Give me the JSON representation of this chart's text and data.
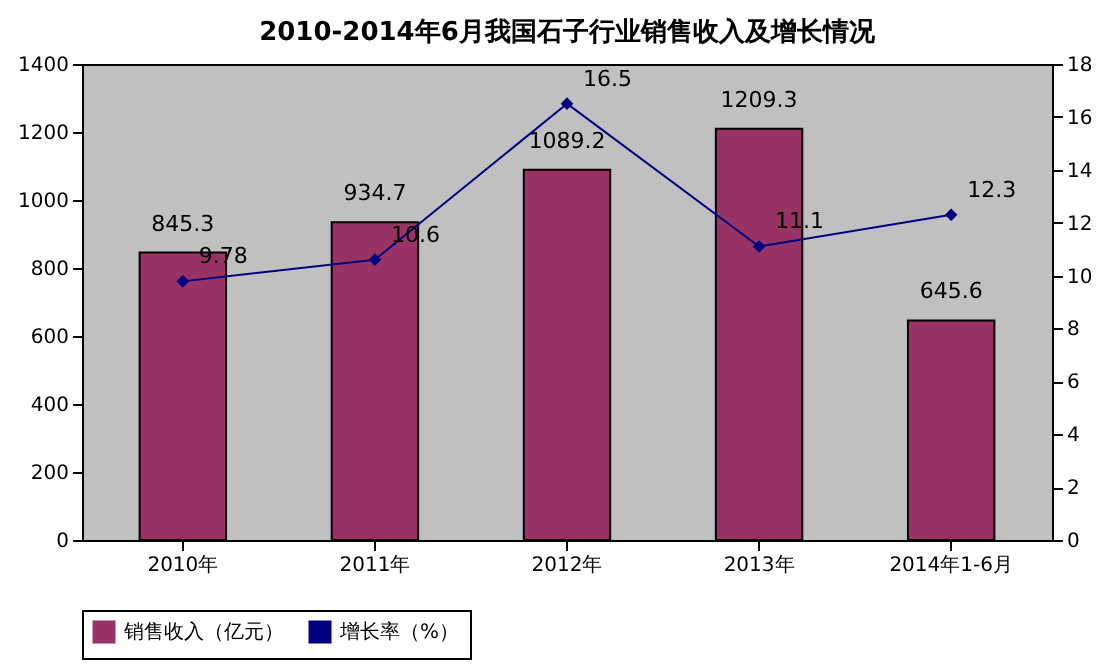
{
  "chart_data": {
    "type": "bar",
    "title": "2010-2014年6月我国石子行业销售收入及增长情况",
    "categories": [
      "2010年",
      "2011年",
      "2012年",
      "2013年",
      "2014年1-6月"
    ],
    "series": [
      {
        "name": "销售收入（亿元）",
        "color": "#993366",
        "values": [
          845.3,
          934.7,
          1089.2,
          1209.3,
          645.6
        ]
      },
      {
        "name": "增长率（%）",
        "type": "line",
        "axis": "y2",
        "color": "#000080",
        "marker": "diamond",
        "values": [
          9.78,
          10.6,
          16.5,
          11.1,
          12.3
        ]
      }
    ],
    "ylim": [
      0,
      1400
    ],
    "yticks": [
      0,
      200,
      400,
      600,
      800,
      1000,
      1200,
      1400
    ],
    "y2lim": [
      0,
      18
    ],
    "y2ticks": [
      0,
      2,
      4,
      6,
      8,
      10,
      12,
      14,
      16,
      18
    ],
    "data_labels": true,
    "grid": false,
    "legend": "bottom"
  }
}
